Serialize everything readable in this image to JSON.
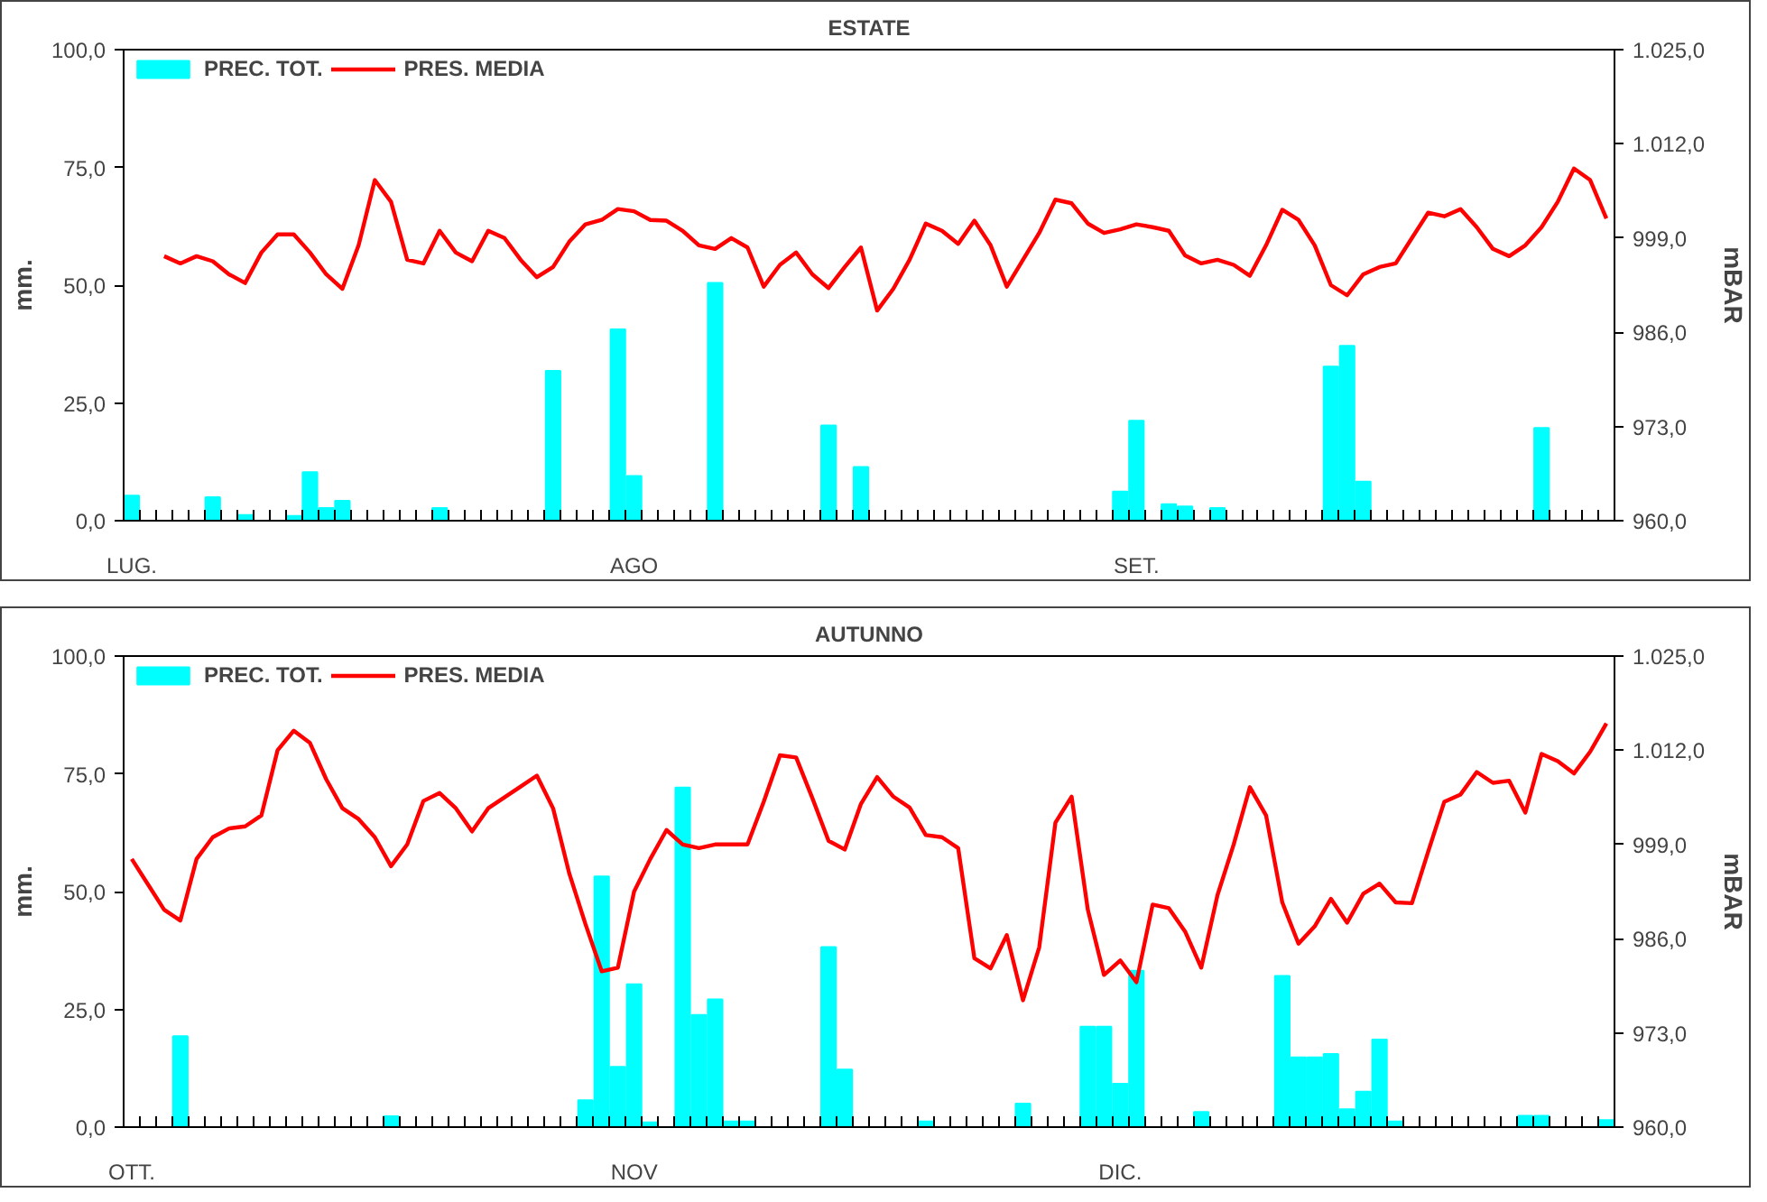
{
  "chart_data": [
    {
      "type": "bar",
      "title": "ESTATE",
      "ylabel": "mm.",
      "y2label": "mBAR",
      "legend": "top left",
      "grid": false,
      "categories": [
        "LUG.",
        null,
        null,
        null,
        null,
        null,
        null,
        null,
        null,
        null,
        null,
        null,
        null,
        null,
        null,
        null,
        null,
        null,
        null,
        null,
        null,
        null,
        null,
        null,
        null,
        null,
        null,
        null,
        null,
        null,
        null,
        "AGO",
        null,
        null,
        null,
        null,
        null,
        null,
        null,
        null,
        null,
        null,
        null,
        null,
        null,
        null,
        null,
        null,
        null,
        null,
        null,
        null,
        null,
        null,
        null,
        null,
        null,
        null,
        null,
        null,
        null,
        null,
        "SET.",
        null,
        null,
        null,
        null,
        null,
        null,
        null,
        null,
        null,
        null,
        null,
        null,
        null,
        null,
        null,
        null,
        null,
        null,
        null,
        null,
        null,
        null,
        null,
        null,
        null,
        null,
        null,
        null,
        null
      ],
      "ylim": [
        0,
        100
      ],
      "yticks": [
        {
          "value": 0,
          "label": "0,0"
        },
        {
          "value": 25,
          "label": "25,0"
        },
        {
          "value": 50,
          "label": "50,0"
        },
        {
          "value": 75,
          "label": "75,0"
        },
        {
          "value": 100,
          "label": "100,0"
        }
      ],
      "y2lim": [
        960,
        1025
      ],
      "y2ticks": [
        {
          "value": 960,
          "label": "960,0"
        },
        {
          "value": 973,
          "label": "973,0"
        },
        {
          "value": 986,
          "label": "986,0"
        },
        {
          "value": 999,
          "label": "999,0"
        },
        {
          "value": 1012,
          "label": "1.012,0"
        },
        {
          "value": 1025,
          "label": "1.025,0"
        }
      ],
      "series": [
        {
          "name": "PREC. TOT.",
          "color": "#00ffff",
          "values": [
            5.3,
            0,
            0,
            0,
            0,
            5,
            0,
            1.2,
            0,
            0,
            1,
            10.3,
            2.7,
            4.2,
            0,
            0,
            0,
            0,
            0,
            2.7,
            0,
            0,
            0,
            0,
            0,
            0,
            31.8,
            0,
            0,
            0,
            40.6,
            9.5,
            0,
            0,
            0,
            0,
            50.5,
            0,
            0,
            0,
            0,
            0,
            0,
            20.2,
            0,
            11.4,
            0,
            0,
            0,
            0,
            0,
            0,
            0,
            0,
            0,
            0,
            0,
            0,
            0,
            0,
            0,
            6.2,
            21.2,
            0,
            3.5,
            3,
            0,
            2.7,
            0,
            0,
            0,
            0,
            0,
            0,
            32.7,
            37.1,
            8.3,
            0,
            0,
            0,
            0,
            0,
            0,
            0,
            0,
            0,
            0,
            19.7,
            0,
            0,
            0,
            0
          ]
        },
        {
          "name": "PRES. MEDIA",
          "type": "line",
          "color": "#ff0000",
          "axis": "y2",
          "values": [
            null,
            null,
            996.5,
            995.5,
            996.5,
            995.8,
            994,
            992.8,
            997,
            999.5,
            999.5,
            997,
            994,
            992,
            998,
            1007,
            1004,
            996,
            995.5,
            1000,
            997,
            995.8,
            1000,
            999,
            996,
            993.6,
            995,
            998.5,
            1000.9,
            1001.5,
            1003,
            1002.7,
            1001.5,
            1001.4,
            1000,
            998,
            997.5,
            999,
            997.7,
            992.3,
            995.3,
            997,
            994,
            992.1,
            995,
            997.7,
            989,
            992,
            996,
            1001,
            1000,
            998.2,
            1001.4,
            998,
            992.3,
            996,
            999.7,
            1004.3,
            1003.8,
            1001,
            999.7,
            1000.2,
            1000.9,
            1000.5,
            1000,
            996.6,
            995.5,
            996,
            995.3,
            993.8,
            998,
            1002.9,
            1001.5,
            998,
            992.5,
            991.1,
            994,
            995,
            995.5,
            999,
            1002.5,
            1002,
            1003,
            1000.5,
            997.5,
            996.5,
            998,
            1000.5,
            1004,
            1008.6,
            1007,
            1001.7
          ]
        }
      ]
    },
    {
      "type": "bar",
      "title": "AUTUNNO",
      "ylabel": "mm.",
      "y2label": "mBAR",
      "legend": "top left",
      "grid": false,
      "categories": [
        "OTT.",
        null,
        null,
        null,
        null,
        null,
        null,
        null,
        null,
        null,
        null,
        null,
        null,
        null,
        null,
        null,
        null,
        null,
        null,
        null,
        null,
        null,
        null,
        null,
        null,
        null,
        null,
        null,
        null,
        null,
        null,
        "NOV",
        null,
        null,
        null,
        null,
        null,
        null,
        null,
        null,
        null,
        null,
        null,
        null,
        null,
        null,
        null,
        null,
        null,
        null,
        null,
        null,
        null,
        null,
        null,
        null,
        null,
        null,
        null,
        null,
        null,
        "DIC.",
        null,
        null,
        null,
        null,
        null,
        null,
        null,
        null,
        null,
        null,
        null,
        null,
        null,
        null,
        null,
        null,
        null,
        null,
        null,
        null,
        null,
        null,
        null,
        null,
        null,
        null,
        null,
        null,
        null,
        null
      ],
      "ylim": [
        0,
        100
      ],
      "yticks": [
        {
          "value": 0,
          "label": "0,0"
        },
        {
          "value": 25,
          "label": "25,0"
        },
        {
          "value": 50,
          "label": "50,0"
        },
        {
          "value": 75,
          "label": "75,0"
        },
        {
          "value": 100,
          "label": "100,0"
        }
      ],
      "y2lim": [
        960,
        1025
      ],
      "y2ticks": [
        {
          "value": 960,
          "label": "960,0"
        },
        {
          "value": 973,
          "label": "973,0"
        },
        {
          "value": 986,
          "label": "986,0"
        },
        {
          "value": 999,
          "label": "999,0"
        },
        {
          "value": 1012,
          "label": "1.012,0"
        },
        {
          "value": 1025,
          "label": "1.025,0"
        }
      ],
      "series": [
        {
          "name": "PREC. TOT.",
          "color": "#00ffff",
          "values": [
            0,
            0,
            0,
            19.3,
            0,
            0,
            0,
            0,
            0,
            0,
            0,
            0,
            0,
            0,
            0,
            0,
            2.3,
            0,
            0,
            0,
            0,
            0,
            0,
            0,
            0,
            0,
            0,
            0,
            5.7,
            53.2,
            12.8,
            30.3,
            1,
            0,
            72.1,
            23.8,
            27.1,
            1.2,
            1.2,
            0,
            0,
            0,
            0,
            38.2,
            12.2,
            0,
            0,
            0,
            0,
            1.2,
            0,
            0,
            0,
            0,
            0,
            5,
            0,
            0,
            0,
            21.3,
            21.3,
            9.2,
            33.2,
            0,
            0,
            0,
            3.2,
            0,
            0,
            0,
            0,
            32.1,
            14.8,
            14.8,
            15.5,
            3.8,
            7.5,
            18.6,
            1.2,
            0,
            0,
            0,
            0,
            0,
            0,
            0,
            2.4,
            2.4,
            0,
            0,
            0,
            1.5
          ]
        },
        {
          "name": "PRES. MEDIA",
          "type": "line",
          "color": "#ff0000",
          "axis": "y2",
          "values": [
            997,
            993.5,
            990,
            988.5,
            997,
            1000,
            1001.2,
            1001.5,
            1003,
            1012,
            1014.7,
            1013,
            1008,
            1004,
            1002.5,
            1000,
            996,
            999,
            1005,
            1006.1,
            1004,
            1000.8,
            1004,
            1005.5,
            1007,
            1008.5,
            1004,
            995,
            988,
            981.5,
            982,
            992.5,
            997,
            1001,
            999,
            998.5,
            999,
            999,
            999,
            1004.9,
            1011.3,
            1011,
            1005.4,
            999.5,
            998.3,
            1004.6,
            1008.3,
            1005.6,
            1004.1,
            1000.3,
            1000,
            998.5,
            983.3,
            981.9,
            986.5,
            977.5,
            984.8,
            1002,
            1005.6,
            990,
            981,
            983,
            980,
            990.7,
            990.2,
            987,
            982,
            992,
            999,
            1006.9,
            1003,
            991,
            985.3,
            987.7,
            991.5,
            988.2,
            992.2,
            993.6,
            991,
            990.9,
            998,
            1004.9,
            1005.9,
            1009,
            1007.5,
            1007.8,
            1003.4,
            1011.5,
            1010.5,
            1008.8,
            1011.8,
            1015.7
          ]
        }
      ]
    }
  ]
}
